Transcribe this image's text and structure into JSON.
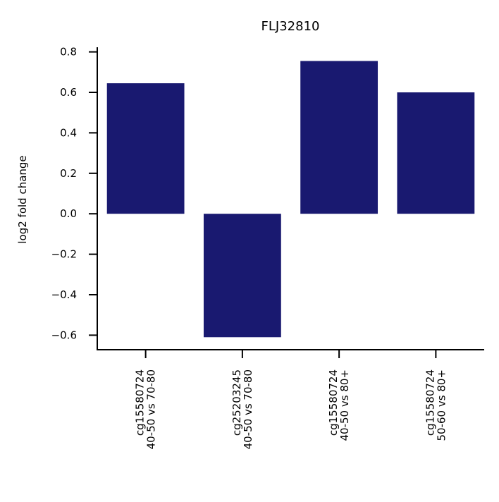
{
  "chart_data": {
    "type": "bar",
    "title": "FLJ32810",
    "xlabel": "",
    "ylabel": "log2 fold change",
    "categories": [
      [
        "cg15580724",
        "40-50 vs 70-80"
      ],
      [
        "cg25203245",
        "40-50 vs 70-80"
      ],
      [
        "cg15580724",
        "40-50 vs 80+"
      ],
      [
        "cg15580724",
        "50-60 vs 80+"
      ]
    ],
    "values": [
      0.645,
      -0.61,
      0.755,
      0.6
    ],
    "ylim": [
      -0.68,
      0.82
    ],
    "yticks": [
      -0.6,
      -0.4,
      -0.2,
      0.0,
      0.2,
      0.4,
      0.6,
      0.8
    ],
    "ytick_labels": [
      "−0.6",
      "−0.4",
      "−0.2",
      "0.0",
      "0.2",
      "0.4",
      "0.6",
      "0.8"
    ],
    "bar_color": "#191970",
    "grid": false,
    "legend": "none"
  }
}
